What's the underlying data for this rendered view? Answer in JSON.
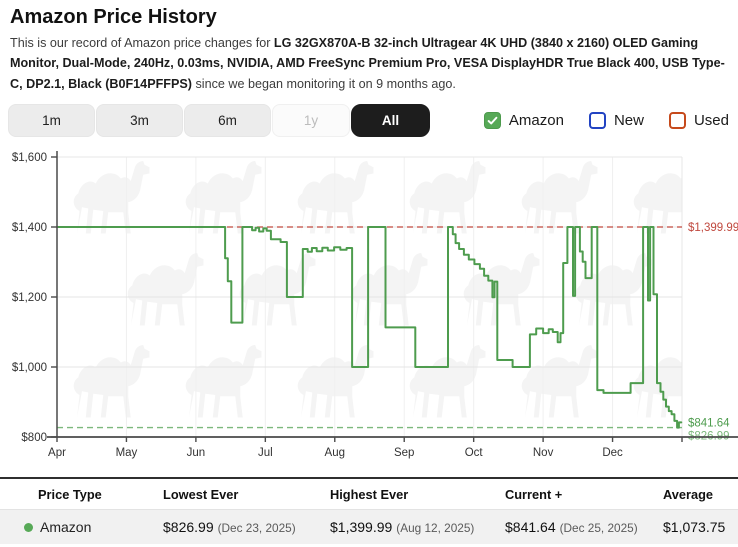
{
  "header": {
    "title": "Amazon Price History",
    "description_prefix": "This is our record of Amazon price changes for ",
    "product_name": "LG 32GX870A-B 32-inch Ultragear 4K UHD (3840 x 2160) OLED Gaming Monitor, Dual-Mode, 240Hz, 0.03ms, NVIDIA, AMD FreeSync Premium Pro, VESA DisplayHDR True Black 400, USB Type-C, DP2.1, Black (B0F14PFFPS)",
    "description_suffix": " since we began monitoring it on 9 months ago."
  },
  "controls": {
    "ranges": [
      {
        "label": "1m",
        "state": "normal"
      },
      {
        "label": "3m",
        "state": "normal"
      },
      {
        "label": "6m",
        "state": "normal"
      },
      {
        "label": "1y",
        "state": "disabled"
      },
      {
        "label": "All",
        "state": "selected"
      }
    ],
    "legend": [
      {
        "label": "Amazon",
        "checked": true,
        "color": "#57a957"
      },
      {
        "label": "New",
        "checked": false,
        "color": "#2243c2"
      },
      {
        "label": "Used",
        "checked": false,
        "color": "#c64a1c"
      }
    ]
  },
  "chart_data": {
    "type": "line",
    "style": "step-after",
    "title": "",
    "xlabel": "",
    "ylabel": "",
    "x_unit": "fractional month of 2025 (4.0 = Apr 1, 13.0 = Dec 31)",
    "x_ticks": [
      "Apr",
      "May",
      "Jun",
      "Jul",
      "Aug",
      "Sep",
      "Oct",
      "Nov",
      "Dec"
    ],
    "y_ticks": [
      "$800",
      "$1,000",
      "$1,200",
      "$1,400",
      "$1,600"
    ],
    "xlim": [
      4,
      13
    ],
    "ylim": [
      800,
      1600
    ],
    "grid": true,
    "series": [
      {
        "name": "Amazon",
        "color": "#4e9c4e",
        "points": [
          [
            4.0,
            1400
          ],
          [
            6.42,
            1311
          ],
          [
            6.46,
            1245
          ],
          [
            6.51,
            1127
          ],
          [
            6.67,
            1400
          ],
          [
            6.81,
            1391
          ],
          [
            6.86,
            1398
          ],
          [
            6.91,
            1387
          ],
          [
            6.97,
            1396
          ],
          [
            7.02,
            1389
          ],
          [
            7.08,
            1365
          ],
          [
            7.22,
            1357
          ],
          [
            7.31,
            1200
          ],
          [
            7.54,
            1337
          ],
          [
            7.61,
            1329
          ],
          [
            7.67,
            1340
          ],
          [
            7.74,
            1331
          ],
          [
            7.82,
            1341
          ],
          [
            7.9,
            1333
          ],
          [
            7.99,
            1342
          ],
          [
            8.08,
            1335
          ],
          [
            8.17,
            1340
          ],
          [
            8.25,
            1000
          ],
          [
            8.48,
            1400
          ],
          [
            8.73,
            1113
          ],
          [
            9.16,
            1000
          ],
          [
            9.63,
            1400
          ],
          [
            9.7,
            1379
          ],
          [
            9.74,
            1354
          ],
          [
            9.79,
            1337
          ],
          [
            9.86,
            1321
          ],
          [
            9.93,
            1307
          ],
          [
            10.01,
            1294
          ],
          [
            10.09,
            1281
          ],
          [
            10.15,
            1261
          ],
          [
            10.21,
            1247
          ],
          [
            10.27,
            1199
          ],
          [
            10.3,
            1244
          ],
          [
            10.34,
            1020
          ],
          [
            10.56,
            1000
          ],
          [
            10.81,
            1093
          ],
          [
            10.9,
            1110
          ],
          [
            11.0,
            1097
          ],
          [
            11.08,
            1108
          ],
          [
            11.14,
            1100
          ],
          [
            11.21,
            1071
          ],
          [
            11.25,
            1097
          ],
          [
            11.29,
            1297
          ],
          [
            11.35,
            1400
          ],
          [
            11.43,
            1203
          ],
          [
            11.46,
            1400
          ],
          [
            11.53,
            1330
          ],
          [
            11.57,
            1301
          ],
          [
            11.61,
            1254
          ],
          [
            11.7,
            1400
          ],
          [
            11.78,
            934
          ],
          [
            11.87,
            926
          ],
          [
            12.26,
            954
          ],
          [
            12.44,
            1400
          ],
          [
            12.51,
            1190
          ],
          [
            12.54,
            1400
          ],
          [
            12.59,
            1208
          ],
          [
            12.64,
            954
          ],
          [
            12.69,
            929
          ],
          [
            12.73,
            907
          ],
          [
            12.77,
            887
          ],
          [
            12.81,
            874
          ],
          [
            12.85,
            865
          ],
          [
            12.89,
            846
          ],
          [
            12.93,
            827
          ],
          [
            12.955,
            841.64
          ],
          [
            12.99,
            841.64
          ]
        ]
      }
    ],
    "reference_lines": [
      {
        "label": "$1,399.99",
        "value": 1399.99,
        "color": "#c0493f",
        "style": "dashed",
        "label_position": "on"
      },
      {
        "label": "$826.99",
        "value": 826.99,
        "color": "#7cb87c",
        "style": "dashed",
        "label_position": "below"
      }
    ],
    "end_label": {
      "text": "$841.64",
      "value": 841.64,
      "color": "#4e9c4e"
    },
    "legend_position": "none"
  },
  "table": {
    "columns": [
      "Price Type",
      "Lowest Ever",
      "Highest Ever",
      "Current +",
      "Average"
    ],
    "rows": [
      {
        "type": "Amazon",
        "dot_color": "#57a957",
        "lowest": {
          "price": "$826.99",
          "date": "(Dec 23, 2025)"
        },
        "highest": {
          "price": "$1,399.99",
          "date": "(Aug 12, 2025)"
        },
        "current": {
          "price": "$841.64",
          "date": "(Dec 25, 2025)"
        },
        "average": "$1,073.75"
      }
    ]
  }
}
